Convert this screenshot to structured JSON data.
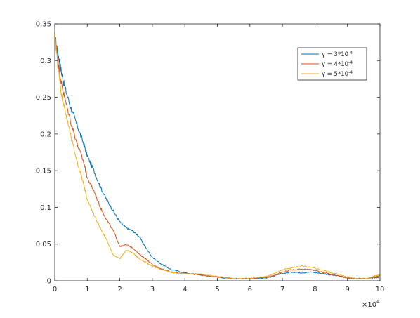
{
  "chart_data": {
    "type": "line",
    "title": "",
    "xlabel": "",
    "ylabel": "",
    "x_exponent_label": "×10",
    "x_exponent_power": "4",
    "xlim": [
      0,
      10
    ],
    "ylim": [
      0,
      0.35
    ],
    "x_ticks": [
      0,
      1,
      2,
      3,
      4,
      5,
      6,
      7,
      8,
      9,
      10
    ],
    "x_tick_labels": [
      "0",
      "1",
      "2",
      "3",
      "4",
      "5",
      "6",
      "7",
      "8",
      "9",
      "10"
    ],
    "y_ticks": [
      0,
      0.05,
      0.1,
      0.15,
      0.2,
      0.25,
      0.3,
      0.35
    ],
    "y_tick_labels": [
      "0",
      "0.05",
      "0.1",
      "0.15",
      "0.2",
      "0.25",
      "0.3",
      "0.35"
    ],
    "grid": false,
    "legend_position": "top-right",
    "series": [
      {
        "name": "γ = 3*10-4",
        "legend_prefix": "γ = 3*10",
        "legend_sup": "-4",
        "color": "#0072BD",
        "x": [
          0,
          0.1,
          0.2,
          0.3,
          0.5,
          0.7,
          0.9,
          1.0,
          1.2,
          1.4,
          1.6,
          1.8,
          2.0,
          2.2,
          2.4,
          2.6,
          2.8,
          3.0,
          3.3,
          3.6,
          4.0,
          4.5,
          5.0,
          5.5,
          6.0,
          6.5,
          6.7,
          7.0,
          7.3,
          7.6,
          7.9,
          8.2,
          8.5,
          8.8,
          9.0,
          9.3,
          9.6,
          9.8,
          10.0
        ],
        "y": [
          0.335,
          0.31,
          0.285,
          0.265,
          0.235,
          0.21,
          0.185,
          0.17,
          0.15,
          0.128,
          0.11,
          0.095,
          0.08,
          0.072,
          0.068,
          0.06,
          0.045,
          0.032,
          0.022,
          0.015,
          0.011,
          0.008,
          0.005,
          0.003,
          0.003,
          0.004,
          0.006,
          0.01,
          0.012,
          0.011,
          0.012,
          0.01,
          0.008,
          0.006,
          0.004,
          0.003,
          0.003,
          0.004,
          0.005
        ]
      },
      {
        "name": "γ = 4*10-4",
        "legend_prefix": "γ = 4*10",
        "legend_sup": "-4",
        "color": "#D95319",
        "x": [
          0,
          0.1,
          0.2,
          0.3,
          0.5,
          0.7,
          0.9,
          1.0,
          1.2,
          1.4,
          1.6,
          1.8,
          2.0,
          2.2,
          2.4,
          2.6,
          2.8,
          3.0,
          3.3,
          3.6,
          4.0,
          4.5,
          5.0,
          5.5,
          6.0,
          6.5,
          6.7,
          7.0,
          7.3,
          7.6,
          7.9,
          8.2,
          8.5,
          8.8,
          9.0,
          9.3,
          9.6,
          9.8,
          10.0
        ],
        "y": [
          0.335,
          0.3,
          0.27,
          0.25,
          0.215,
          0.185,
          0.16,
          0.14,
          0.123,
          0.1,
          0.083,
          0.068,
          0.047,
          0.049,
          0.045,
          0.036,
          0.03,
          0.022,
          0.016,
          0.012,
          0.01,
          0.008,
          0.005,
          0.003,
          0.003,
          0.005,
          0.007,
          0.012,
          0.015,
          0.016,
          0.015,
          0.012,
          0.009,
          0.006,
          0.004,
          0.003,
          0.003,
          0.005,
          0.007
        ]
      },
      {
        "name": "γ = 5*10-4",
        "legend_prefix": "γ = 5*10",
        "legend_sup": "-4",
        "color": "#EDB120",
        "x": [
          0,
          0.1,
          0.2,
          0.3,
          0.5,
          0.7,
          0.9,
          1.0,
          1.2,
          1.4,
          1.6,
          1.8,
          2.0,
          2.2,
          2.4,
          2.6,
          2.8,
          3.0,
          3.3,
          3.6,
          4.0,
          4.5,
          5.0,
          5.5,
          6.0,
          6.5,
          6.7,
          7.0,
          7.3,
          7.6,
          7.9,
          8.2,
          8.5,
          8.8,
          9.0,
          9.3,
          9.6,
          9.8,
          10.0
        ],
        "y": [
          0.335,
          0.29,
          0.255,
          0.235,
          0.195,
          0.16,
          0.13,
          0.11,
          0.09,
          0.072,
          0.055,
          0.035,
          0.03,
          0.042,
          0.038,
          0.03,
          0.025,
          0.02,
          0.015,
          0.011,
          0.01,
          0.009,
          0.006,
          0.003,
          0.003,
          0.006,
          0.009,
          0.015,
          0.018,
          0.02,
          0.018,
          0.015,
          0.011,
          0.008,
          0.005,
          0.003,
          0.003,
          0.006,
          0.009
        ]
      }
    ]
  }
}
